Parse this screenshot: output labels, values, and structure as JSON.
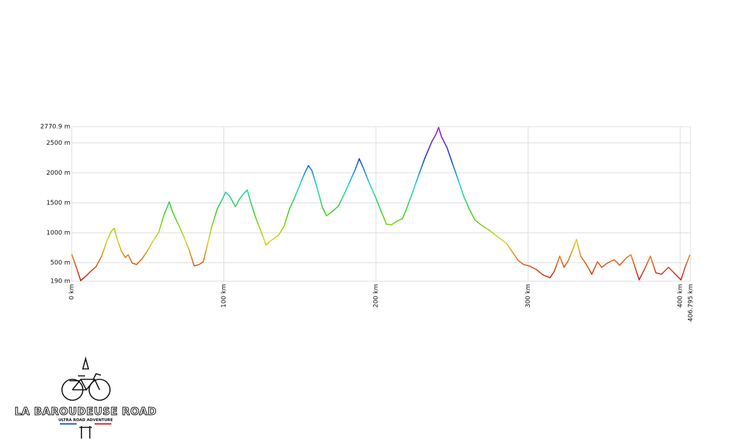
{
  "chart_data": {
    "type": "line",
    "x": [
      0,
      3.2,
      5.9,
      8.7,
      12.4,
      16.0,
      19.7,
      23.3,
      26.1,
      27.9,
      29.7,
      32.5,
      35.2,
      37.1,
      39.8,
      42.6,
      46.2,
      49.9,
      53.5,
      57.2,
      60.4,
      62.7,
      64.1,
      66.4,
      70.0,
      73.7,
      77.3,
      80.5,
      83.8,
      86.5,
      88.3,
      92.0,
      95.7,
      99.3,
      101.1,
      103.9,
      107.6,
      110.3,
      113.1,
      115.4,
      117.6,
      121.3,
      124.9,
      127.7,
      131.4,
      135.9,
      139.6,
      143.2,
      146.9,
      150.6,
      153.3,
      155.6,
      157.9,
      161.6,
      164.8,
      167.5,
      170.7,
      175.3,
      178.9,
      182.6,
      186.3,
      189.0,
      191.8,
      195.4,
      200.0,
      203.7,
      206.9,
      210.1,
      213.7,
      217.4,
      220.1,
      223.8,
      227.5,
      232.0,
      236.6,
      239.4,
      241.2,
      243.0,
      246.7,
      250.3,
      254.0,
      257.7,
      261.3,
      265.0,
      269.6,
      274.1,
      278.7,
      282.4,
      286.0,
      289.7,
      293.4,
      297.0,
      300.7,
      305.3,
      309.8,
      314.4,
      317.2,
      320.8,
      323.6,
      326.3,
      329.1,
      331.8,
      334.6,
      338.3,
      341.9,
      345.6,
      348.4,
      352.0,
      356.6,
      360.2,
      364.8,
      367.6,
      370.3,
      373.0,
      376.7,
      380.4,
      384.0,
      387.7,
      392.3,
      395.9,
      400.5,
      403.2,
      406.4
    ],
    "series": [
      {
        "values": [
          640,
          411,
          200,
          260,
          353,
          434,
          609,
          876,
          1027,
          1074,
          911,
          702,
          585,
          632,
          492,
          469,
          562,
          702,
          864,
          1004,
          1283,
          1422,
          1515,
          1341,
          1143,
          934,
          702,
          446,
          469,
          516,
          702,
          1097,
          1399,
          1574,
          1678,
          1608,
          1434,
          1562,
          1655,
          1713,
          1515,
          1225,
          992,
          795,
          876,
          957,
          1108,
          1399,
          1608,
          1841,
          2004,
          2120,
          2039,
          1725,
          1422,
          1283,
          1341,
          1446,
          1632,
          1841,
          2051,
          2236,
          2074,
          1841,
          1574,
          1341,
          1143,
          1132,
          1190,
          1236,
          1399,
          1655,
          1922,
          2236,
          2515,
          2643,
          2759,
          2608,
          2422,
          2155,
          1887,
          1608,
          1399,
          1213,
          1120,
          1050,
          957,
          888,
          818,
          678,
          539,
          469,
          446,
          388,
          295,
          248,
          353,
          609,
          423,
          527,
          702,
          888,
          609,
          469,
          306,
          516,
          423,
          492,
          550,
          457,
          585,
          632,
          423,
          213,
          399,
          609,
          330,
          306,
          423,
          330,
          213,
          423,
          632
        ]
      }
    ],
    "xlim": [
      0,
      406.795
    ],
    "xticks": [
      {
        "value": 0,
        "label": "0 km"
      },
      {
        "value": 100,
        "label": "100 km"
      },
      {
        "value": 200,
        "label": "200 km"
      },
      {
        "value": 300,
        "label": "300 km"
      },
      {
        "value": 400,
        "label": "400 km"
      },
      {
        "value": 406.795,
        "label": "406.795 km"
      }
    ],
    "ylim": [
      190,
      2770.9
    ],
    "yticks": [
      {
        "value": 190,
        "label": "190 m"
      },
      {
        "value": 500,
        "label": "500 m"
      },
      {
        "value": 1000,
        "label": "1000 m"
      },
      {
        "value": 1500,
        "label": "1500 m"
      },
      {
        "value": 2000,
        "label": "2000 m"
      },
      {
        "value": 2500,
        "label": "2500 m"
      },
      {
        "value": 2770.9,
        "label": "2770.9 m"
      }
    ],
    "grid": true
  },
  "logo": {
    "title": "LA BAROUDEUSE ROAD",
    "subtitle": "ULTRA ROAD ADVENTURE"
  }
}
